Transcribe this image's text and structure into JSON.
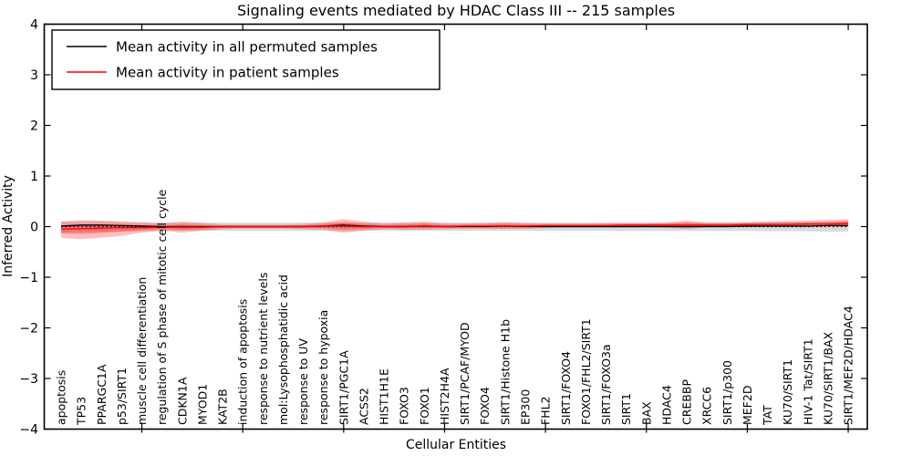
{
  "window": {
    "background": "#ffffff"
  },
  "chart_data": {
    "type": "line",
    "title": "Signaling events mediated by HDAC Class III -- 215 samples",
    "xlabel": "Cellular Entities",
    "ylabel": "Inferred Activity",
    "ylim": [
      -4,
      4
    ],
    "yticks": [
      4,
      3,
      2,
      1,
      0,
      -1,
      -2,
      -3,
      -4
    ],
    "ytick_labels": [
      "4",
      "3",
      "2",
      "1",
      "0",
      "−1",
      "−2",
      "−3",
      "−4"
    ],
    "grid": false,
    "legend_position": "upper-left",
    "categories": [
      "apoptosis",
      "TP53",
      "PPARGC1A",
      "p53/SIRT1",
      "muscle cell differentiation",
      "regulation of S phase of mitotic cell cycle",
      "CDKN1A",
      "MYOD1",
      "KAT2B",
      "induction of apoptosis",
      "response to nutrient levels",
      "mol:Lysophosphatidic acid",
      "response to UV",
      "response to hypoxia",
      "SIRT1/PGC1A",
      "ACSS2",
      "HIST1H1E",
      "FOXO3",
      "FOXO1",
      "HIST2H4A",
      "SIRT1/PCAF/MYOD",
      "FOXO4",
      "SIRT1/Histone H1b",
      "EP300",
      "FHL2",
      "SIRT1/FOXO4",
      "FOXO1/FHL2/SIRT1",
      "SIRT1/FOXO3a",
      "SIRT1",
      "BAX",
      "HDAC4",
      "CREBBP",
      "XRCC6",
      "SIRT1/p300",
      "MEF2D",
      "TAT",
      "KU70/SIRT1",
      "HIV-1 Tat/SIRT1",
      "KU70/SIRT1/BAX",
      "SIRT1/MEF2D/HDAC4"
    ],
    "xtick_marked_indices": [
      4,
      9,
      14,
      19,
      24,
      29,
      34,
      39
    ],
    "series": [
      {
        "name": "Mean activity in all permuted samples",
        "color": "#000000",
        "line_style": "solid",
        "values": [
          0.01,
          0.03,
          0.03,
          0.02,
          0.01,
          0.0,
          0.0,
          0.0,
          0.0,
          0.0,
          0.0,
          0.0,
          0.0,
          0.01,
          0.03,
          0.01,
          0.0,
          0.0,
          0.01,
          0.0,
          0.0,
          0.0,
          0.01,
          0.0,
          0.0,
          0.0,
          0.0,
          0.0,
          0.0,
          0.0,
          0.0,
          0.0,
          0.0,
          0.0,
          0.01,
          0.01,
          0.01,
          0.01,
          0.02,
          0.02
        ]
      },
      {
        "name": "Mean activity in patient samples",
        "color": "#ff0000",
        "line_style": "solid",
        "values": [
          -0.05,
          -0.04,
          -0.03,
          -0.02,
          -0.02,
          -0.01,
          -0.01,
          -0.01,
          0.0,
          0.0,
          0.0,
          0.0,
          0.0,
          0.01,
          0.01,
          0.0,
          0.0,
          0.0,
          0.01,
          0.0,
          0.01,
          0.01,
          0.01,
          0.01,
          0.02,
          0.02,
          0.02,
          0.02,
          0.03,
          0.03,
          0.03,
          0.03,
          0.03,
          0.03,
          0.04,
          0.04,
          0.04,
          0.05,
          0.05,
          0.06
        ]
      }
    ],
    "reference_line": {
      "y": 0,
      "color": "#000000",
      "line_style": "dotted"
    },
    "bands": [
      {
        "name": "permuted sample range",
        "color": "#bdbdbd",
        "opacity": 0.55,
        "hi": [
          0.1,
          0.1,
          0.1,
          0.09,
          0.09,
          0.08,
          0.08,
          0.08,
          0.08,
          0.08,
          0.08,
          0.08,
          0.08,
          0.08,
          0.09,
          0.08,
          0.08,
          0.08,
          0.08,
          0.08,
          0.08,
          0.08,
          0.08,
          0.08,
          0.08,
          0.08,
          0.08,
          0.08,
          0.08,
          0.08,
          0.08,
          0.08,
          0.08,
          0.08,
          0.08,
          0.09,
          0.09,
          0.09,
          0.1,
          0.1
        ],
        "lo": [
          -0.1,
          -0.1,
          -0.1,
          -0.09,
          -0.09,
          -0.08,
          -0.08,
          -0.08,
          -0.08,
          -0.08,
          -0.08,
          -0.08,
          -0.08,
          -0.08,
          -0.09,
          -0.08,
          -0.08,
          -0.08,
          -0.08,
          -0.08,
          -0.08,
          -0.08,
          -0.08,
          -0.08,
          -0.08,
          -0.08,
          -0.08,
          -0.08,
          -0.08,
          -0.08,
          -0.08,
          -0.08,
          -0.08,
          -0.08,
          -0.08,
          -0.09,
          -0.09,
          -0.09,
          -0.1,
          -0.1
        ]
      },
      {
        "name": "patient sample range",
        "color": "#ff0000",
        "opacity": 0.25,
        "hi": [
          0.1,
          0.13,
          0.12,
          0.1,
          0.08,
          0.06,
          0.1,
          0.07,
          0.04,
          0.04,
          0.04,
          0.04,
          0.05,
          0.08,
          0.15,
          0.1,
          0.06,
          0.08,
          0.1,
          0.06,
          0.06,
          0.07,
          0.09,
          0.07,
          0.06,
          0.06,
          0.06,
          0.07,
          0.07,
          0.07,
          0.08,
          0.12,
          0.08,
          0.08,
          0.09,
          0.1,
          0.11,
          0.12,
          0.13,
          0.15
        ],
        "lo": [
          -0.22,
          -0.25,
          -0.22,
          -0.18,
          -0.12,
          -0.08,
          -0.12,
          -0.08,
          -0.05,
          -0.04,
          -0.04,
          -0.04,
          -0.05,
          -0.06,
          -0.12,
          -0.08,
          -0.05,
          -0.06,
          -0.06,
          -0.05,
          -0.04,
          -0.04,
          -0.05,
          -0.04,
          -0.03,
          -0.02,
          -0.02,
          -0.02,
          -0.02,
          -0.01,
          -0.02,
          -0.05,
          -0.01,
          -0.01,
          -0.01,
          0.0,
          0.0,
          0.0,
          0.0,
          0.0
        ]
      }
    ]
  },
  "legend": {
    "items": [
      {
        "label": "Mean activity in all permuted samples",
        "color": "#000000"
      },
      {
        "label": "Mean activity in patient samples",
        "color": "#ff0000"
      }
    ]
  }
}
